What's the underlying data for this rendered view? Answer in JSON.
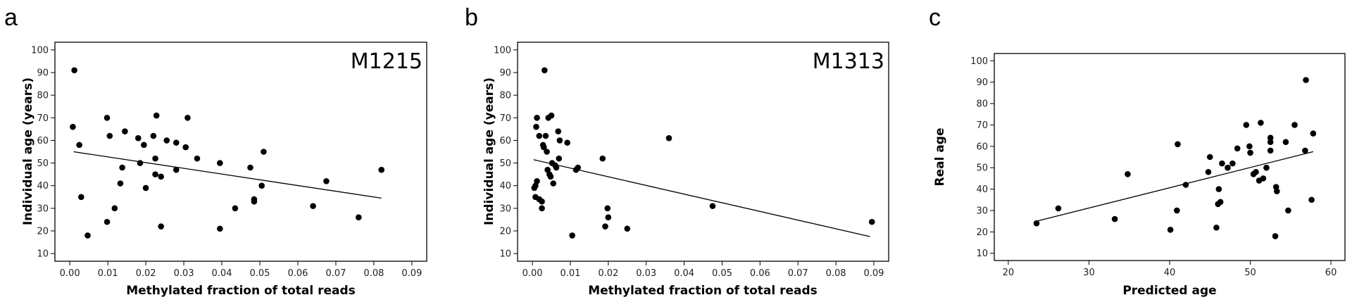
{
  "chart_data": [
    {
      "panel": "a",
      "type": "scatter",
      "annotation": "M1215",
      "xlabel": "Methylated fraction of total reads",
      "ylabel": "Individual age (years)",
      "xlim": [
        0,
        0.09
      ],
      "ylim": [
        10,
        100
      ],
      "xticks": [
        "0.00",
        "0.01",
        "0.02",
        "0.03",
        "0.04",
        "0.05",
        "0.06",
        "0.07",
        "0.08",
        "0.09"
      ],
      "yticks": [
        "10",
        "20",
        "30",
        "40",
        "50",
        "60",
        "70",
        "80",
        "90",
        "100"
      ],
      "grid": false,
      "trendline": [
        [
          0.001,
          55
        ],
        [
          0.082,
          34.5
        ]
      ],
      "points": [
        [
          0.0012,
          91
        ],
        [
          0.0008,
          66
        ],
        [
          0.0025,
          58
        ],
        [
          0.003,
          35
        ],
        [
          0.0047,
          18
        ],
        [
          0.0098,
          70
        ],
        [
          0.0105,
          62
        ],
        [
          0.0098,
          24
        ],
        [
          0.0118,
          30
        ],
        [
          0.0133,
          41
        ],
        [
          0.0138,
          48
        ],
        [
          0.0145,
          64
        ],
        [
          0.018,
          61
        ],
        [
          0.0185,
          50
        ],
        [
          0.0195,
          58
        ],
        [
          0.02,
          39
        ],
        [
          0.022,
          62
        ],
        [
          0.0225,
          52
        ],
        [
          0.0228,
          71
        ],
        [
          0.0225,
          45
        ],
        [
          0.024,
          44
        ],
        [
          0.024,
          22
        ],
        [
          0.0255,
          60
        ],
        [
          0.028,
          59
        ],
        [
          0.028,
          47
        ],
        [
          0.0305,
          57
        ],
        [
          0.031,
          70
        ],
        [
          0.0335,
          52
        ],
        [
          0.0395,
          50
        ],
        [
          0.0395,
          21
        ],
        [
          0.0435,
          30
        ],
        [
          0.0475,
          48
        ],
        [
          0.0485,
          34
        ],
        [
          0.0485,
          33
        ],
        [
          0.0505,
          40
        ],
        [
          0.051,
          55
        ],
        [
          0.064,
          31
        ],
        [
          0.0675,
          42
        ],
        [
          0.076,
          26
        ],
        [
          0.082,
          47
        ]
      ]
    },
    {
      "panel": "b",
      "type": "scatter",
      "annotation": "M1313",
      "xlabel": "Methylated fraction of total reads",
      "ylabel": "Individual age (years)",
      "xlim": [
        0,
        0.09
      ],
      "ylim": [
        10,
        100
      ],
      "xticks": [
        "0.00",
        "0.01",
        "0.02",
        "0.03",
        "0.04",
        "0.05",
        "0.06",
        "0.07",
        "0.08",
        "0.09"
      ],
      "yticks": [
        "10",
        "20",
        "30",
        "40",
        "50",
        "60",
        "70",
        "80",
        "90",
        "100"
      ],
      "grid": false,
      "trendline": [
        [
          0.0003,
          51.5
        ],
        [
          0.089,
          17.5
        ]
      ],
      "points": [
        [
          0.0005,
          39
        ],
        [
          0.0008,
          40
        ],
        [
          0.0008,
          35
        ],
        [
          0.0012,
          42
        ],
        [
          0.001,
          66
        ],
        [
          0.0012,
          70
        ],
        [
          0.0018,
          62
        ],
        [
          0.0018,
          34
        ],
        [
          0.0025,
          30
        ],
        [
          0.0025,
          33
        ],
        [
          0.0028,
          58
        ],
        [
          0.003,
          57
        ],
        [
          0.0032,
          91
        ],
        [
          0.0035,
          62
        ],
        [
          0.0038,
          55
        ],
        [
          0.004,
          47
        ],
        [
          0.0042,
          70
        ],
        [
          0.0045,
          45
        ],
        [
          0.0048,
          44
        ],
        [
          0.005,
          71
        ],
        [
          0.0052,
          50
        ],
        [
          0.0055,
          41
        ],
        [
          0.006,
          49
        ],
        [
          0.0063,
          48
        ],
        [
          0.0068,
          64
        ],
        [
          0.007,
          52
        ],
        [
          0.0072,
          60
        ],
        [
          0.0092,
          59
        ],
        [
          0.0105,
          18
        ],
        [
          0.0115,
          47
        ],
        [
          0.012,
          48
        ],
        [
          0.0185,
          52
        ],
        [
          0.0192,
          22
        ],
        [
          0.0198,
          30
        ],
        [
          0.02,
          26
        ],
        [
          0.025,
          21
        ],
        [
          0.036,
          61
        ],
        [
          0.0475,
          31
        ],
        [
          0.0895,
          24
        ]
      ]
    },
    {
      "panel": "c",
      "type": "scatter",
      "annotation": "",
      "xlabel": "Predicted age",
      "ylabel": "Real age",
      "xlim": [
        20,
        60
      ],
      "ylim": [
        10,
        100
      ],
      "xticks": [
        "20",
        "30",
        "40",
        "50",
        "60"
      ],
      "yticks": [
        "10",
        "20",
        "30",
        "40",
        "50",
        "60",
        "70",
        "80",
        "90",
        "100"
      ],
      "grid": false,
      "trendline": [
        [
          23.5,
          25
        ],
        [
          57.8,
          57.5
        ]
      ],
      "points": [
        [
          23.5,
          24
        ],
        [
          26.2,
          31
        ],
        [
          33.2,
          26
        ],
        [
          34.8,
          47
        ],
        [
          40.1,
          21
        ],
        [
          40.9,
          30
        ],
        [
          41,
          61
        ],
        [
          42,
          42
        ],
        [
          44.8,
          48
        ],
        [
          45,
          55
        ],
        [
          45.8,
          22
        ],
        [
          46,
          33
        ],
        [
          46.3,
          34
        ],
        [
          46.1,
          40
        ],
        [
          46.5,
          52
        ],
        [
          47.2,
          50
        ],
        [
          47.8,
          52
        ],
        [
          48.4,
          59
        ],
        [
          49.5,
          70
        ],
        [
          49.9,
          60
        ],
        [
          50,
          57
        ],
        [
          50.4,
          47
        ],
        [
          50.7,
          48
        ],
        [
          51.1,
          44
        ],
        [
          51.3,
          71
        ],
        [
          51.6,
          45
        ],
        [
          52,
          50
        ],
        [
          52.5,
          58
        ],
        [
          52.5,
          62
        ],
        [
          52.5,
          64
        ],
        [
          53.1,
          18
        ],
        [
          53.2,
          41
        ],
        [
          53.3,
          39
        ],
        [
          54.4,
          62
        ],
        [
          54.7,
          30
        ],
        [
          55.5,
          70
        ],
        [
          56.8,
          58
        ],
        [
          56.9,
          91
        ],
        [
          57.6,
          35
        ],
        [
          57.8,
          66
        ]
      ]
    }
  ]
}
